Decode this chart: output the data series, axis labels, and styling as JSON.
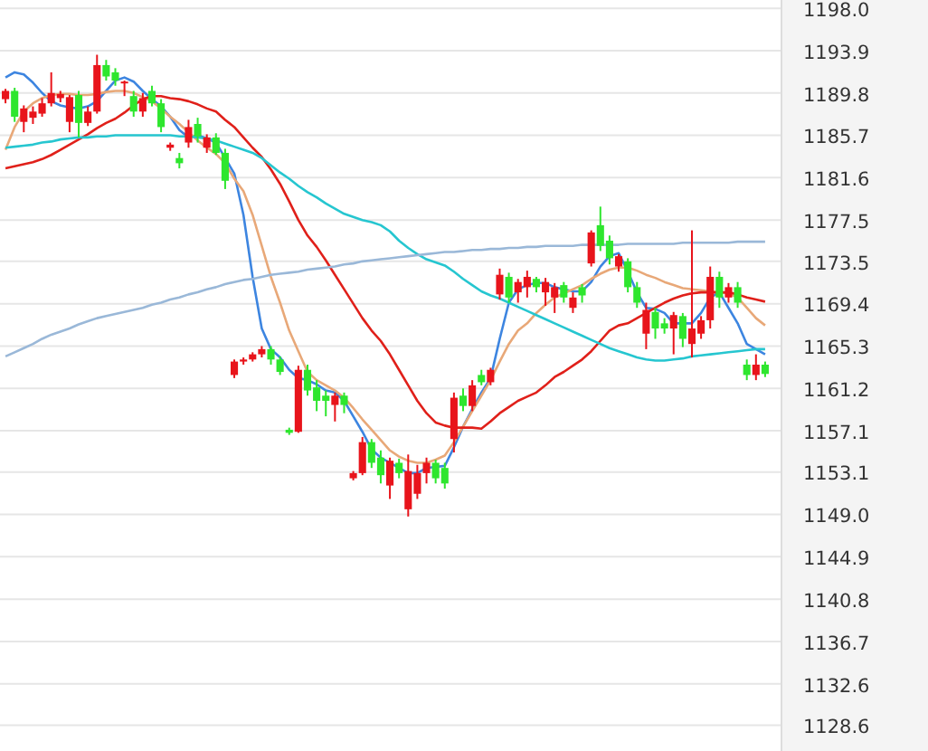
{
  "chart_data": {
    "type": "candlestick",
    "categories": [
      null,
      null,
      null,
      null,
      null,
      null,
      null,
      null,
      null,
      null,
      null,
      null,
      null,
      null,
      null,
      null,
      null,
      null,
      null,
      null,
      null,
      null,
      null,
      null,
      null,
      null,
      null,
      null,
      null,
      null,
      null,
      null,
      null,
      null,
      null,
      null,
      null,
      null,
      null,
      null,
      null,
      null,
      null,
      null,
      null,
      null,
      null,
      null,
      null,
      null,
      null,
      null,
      null,
      null,
      null,
      null,
      null,
      null,
      null,
      null,
      null,
      null,
      null,
      null,
      null,
      null,
      null,
      null,
      null,
      null,
      null,
      null,
      null,
      null,
      null,
      null,
      null,
      null,
      null,
      null,
      null,
      null,
      null,
      null
    ],
    "ohlc": [
      [
        1189.2,
        1190.2,
        1188.8,
        1190.0
      ],
      [
        1190.0,
        1190.3,
        1187.0,
        1187.5
      ],
      [
        1187.0,
        1188.6,
        1186.0,
        1188.3
      ],
      [
        1187.4,
        1188.5,
        1186.8,
        1188.0
      ],
      [
        1187.8,
        1189.3,
        1187.5,
        1188.8
      ],
      [
        1188.8,
        1191.8,
        1188.5,
        1189.8
      ],
      [
        1189.3,
        1190.0,
        1188.9,
        1189.7
      ],
      [
        1187.0,
        1189.6,
        1186.0,
        1189.4
      ],
      [
        1189.6,
        1190.0,
        1185.5,
        1186.9
      ],
      [
        1186.9,
        1188.5,
        1186.6,
        1188.0
      ],
      [
        1188.0,
        1193.5,
        1187.8,
        1192.5
      ],
      [
        1192.5,
        1193.0,
        1191.0,
        1191.4
      ],
      [
        1191.8,
        1192.2,
        1190.5,
        1191.0
      ],
      [
        1190.8,
        1191.0,
        1189.5,
        1190.9
      ],
      [
        1189.5,
        1190.0,
        1187.5,
        1188.0
      ],
      [
        1188.0,
        1189.8,
        1187.5,
        1189.3
      ],
      [
        1190.0,
        1190.5,
        1188.5,
        1188.8
      ],
      [
        1188.8,
        1189.2,
        1186.0,
        1186.5
      ],
      [
        1184.5,
        1185.0,
        1184.2,
        1184.8
      ],
      [
        1183.5,
        1184.0,
        1182.5,
        1183.0
      ],
      [
        1185.0,
        1187.2,
        1184.5,
        1186.5
      ],
      [
        1186.8,
        1187.4,
        1185.0,
        1185.6
      ],
      [
        1184.5,
        1185.8,
        1184.0,
        1185.5
      ],
      [
        1185.5,
        1185.9,
        1183.8,
        1184.0
      ],
      [
        1184.0,
        1184.4,
        1180.5,
        1181.3
      ],
      [
        1162.5,
        1164.0,
        1162.2,
        1163.8
      ],
      [
        1163.8,
        1164.2,
        1163.5,
        1164.0
      ],
      [
        1164.0,
        1164.7,
        1163.8,
        1164.5
      ],
      [
        1164.5,
        1165.3,
        1164.2,
        1165.0
      ],
      [
        1165.0,
        1165.3,
        1163.5,
        1164.0
      ],
      [
        1164.0,
        1164.3,
        1162.5,
        1162.8
      ],
      [
        1157.2,
        1157.4,
        1156.7,
        1156.9
      ],
      [
        1157.0,
        1163.4,
        1156.9,
        1163.0
      ],
      [
        1163.0,
        1163.5,
        1160.5,
        1161.0
      ],
      [
        1161.3,
        1162.0,
        1159.0,
        1160.0
      ],
      [
        1160.5,
        1161.0,
        1158.5,
        1160.0
      ],
      [
        1159.6,
        1160.8,
        1158.0,
        1160.5
      ],
      [
        1160.5,
        1160.8,
        1158.8,
        1159.6
      ],
      [
        1152.5,
        1153.2,
        1152.3,
        1153.0
      ],
      [
        1153.0,
        1156.5,
        1152.8,
        1156.0
      ],
      [
        1156.0,
        1156.3,
        1153.5,
        1154.0
      ],
      [
        1154.5,
        1155.2,
        1152.0,
        1152.8
      ],
      [
        1151.8,
        1154.5,
        1150.5,
        1154.2
      ],
      [
        1154.0,
        1154.4,
        1152.5,
        1153.0
      ],
      [
        1149.5,
        1154.8,
        1148.8,
        1153.2
      ],
      [
        1151.0,
        1153.8,
        1150.5,
        1153.0
      ],
      [
        1153.0,
        1154.5,
        1152.0,
        1154.0
      ],
      [
        1154.0,
        1154.3,
        1152.0,
        1152.5
      ],
      [
        1153.5,
        1154.0,
        1151.5,
        1152.0
      ],
      [
        1156.3,
        1160.8,
        1155.0,
        1160.3
      ],
      [
        1160.5,
        1161.2,
        1159.0,
        1159.5
      ],
      [
        1159.5,
        1162.0,
        1159.0,
        1161.5
      ],
      [
        1162.5,
        1163.0,
        1161.5,
        1161.8
      ],
      [
        1161.8,
        1163.2,
        1161.5,
        1163.0
      ],
      [
        1170.3,
        1172.8,
        1169.8,
        1172.2
      ],
      [
        1172.0,
        1172.4,
        1169.5,
        1170.0
      ],
      [
        1170.5,
        1171.8,
        1169.5,
        1171.5
      ],
      [
        1171.0,
        1172.6,
        1170.0,
        1172.0
      ],
      [
        1171.8,
        1172.0,
        1170.5,
        1171.0
      ],
      [
        1170.5,
        1171.9,
        1169.2,
        1171.5
      ],
      [
        1170.0,
        1171.4,
        1168.5,
        1171.0
      ],
      [
        1171.2,
        1171.5,
        1169.5,
        1170.0
      ],
      [
        1169.0,
        1170.5,
        1168.5,
        1170.0
      ],
      [
        1171.0,
        1171.3,
        1169.5,
        1170.2
      ],
      [
        1173.3,
        1176.5,
        1173.0,
        1176.3
      ],
      [
        1177.0,
        1178.8,
        1174.5,
        1175.0
      ],
      [
        1175.5,
        1176.0,
        1173.2,
        1173.8
      ],
      [
        1173.0,
        1174.2,
        1172.5,
        1174.0
      ],
      [
        1173.5,
        1173.8,
        1170.5,
        1171.0
      ],
      [
        1171.0,
        1171.5,
        1169.0,
        1169.5
      ],
      [
        1166.5,
        1169.5,
        1165.0,
        1168.8
      ],
      [
        1168.6,
        1169.0,
        1166.0,
        1167.0
      ],
      [
        1167.5,
        1168.0,
        1166.5,
        1167.0
      ],
      [
        1167.0,
        1168.6,
        1164.5,
        1168.3
      ],
      [
        1168.2,
        1168.5,
        1165.2,
        1166.0
      ],
      [
        1165.5,
        1176.5,
        1164.2,
        1167.0
      ],
      [
        1166.5,
        1168.2,
        1166.0,
        1167.8
      ],
      [
        1167.8,
        1173.0,
        1167.0,
        1172.0
      ],
      [
        1172.0,
        1172.5,
        1169.0,
        1170.0
      ],
      [
        1170.0,
        1171.4,
        1169.5,
        1171.0
      ],
      [
        1171.0,
        1171.5,
        1169.0,
        1169.5
      ],
      [
        1163.5,
        1164.0,
        1162.0,
        1162.5
      ],
      [
        1162.5,
        1164.5,
        1162.0,
        1163.5
      ],
      [
        1163.5,
        1163.8,
        1162.3,
        1162.6
      ]
    ],
    "colors": [
      "#e8141b",
      "#2ee62e",
      "#e8141b",
      "#e8141b",
      "#e8141b",
      "#e8141b",
      "#e8141b",
      "#e8141b",
      "#2ee62e",
      "#e8141b",
      "#e8141b",
      "#2ee62e",
      "#2ee62e",
      "#e8141b",
      "#2ee62e",
      "#e8141b",
      "#2ee62e",
      "#2ee62e",
      "#e8141b",
      "#2ee62e",
      "#e8141b",
      "#2ee62e",
      "#e8141b",
      "#2ee62e",
      "#2ee62e",
      "#e8141b",
      "#e8141b",
      "#e8141b",
      "#e8141b",
      "#2ee62e",
      "#2ee62e",
      "#2ee62e",
      "#e8141b",
      "#2ee62e",
      "#2ee62e",
      "#2ee62e",
      "#e8141b",
      "#2ee62e",
      "#e8141b",
      "#e8141b",
      "#2ee62e",
      "#2ee62e",
      "#e8141b",
      "#2ee62e",
      "#e8141b",
      "#e8141b",
      "#e8141b",
      "#2ee62e",
      "#2ee62e",
      "#e8141b",
      "#2ee62e",
      "#e8141b",
      "#2ee62e",
      "#e8141b",
      "#e8141b",
      "#2ee62e",
      "#e8141b",
      "#e8141b",
      "#2ee62e",
      "#e8141b",
      "#e8141b",
      "#2ee62e",
      "#e8141b",
      "#2ee62e",
      "#e8141b",
      "#2ee62e",
      "#2ee62e",
      "#e8141b",
      "#2ee62e",
      "#2ee62e",
      "#e8141b",
      "#2ee62e",
      "#2ee62e",
      "#e8141b",
      "#2ee62e",
      "#e8141b",
      "#e8141b",
      "#e8141b",
      "#2ee62e",
      "#e8141b",
      "#2ee62e",
      "#2ee62e",
      "#e8141b",
      "#2ee62e"
    ],
    "series": [
      {
        "type": "line",
        "color": "#3d85e0",
        "values": [
          1191.3,
          1191.8,
          1191.6,
          1190.8,
          1189.8,
          1189.0,
          1188.6,
          1188.4,
          1188.3,
          1188.5,
          1189.0,
          1190.0,
          1191.0,
          1191.3,
          1190.9,
          1190.0,
          1189.2,
          1188.5,
          1187.5,
          1186.2,
          1185.5,
          1185.7,
          1185.4,
          1185.0,
          1183.5,
          1182.0,
          1178.0,
          1172.0,
          1167.0,
          1165.0,
          1164.2,
          1163.0,
          1162.2,
          1162.0,
          1161.6,
          1161.0,
          1160.8,
          1160.0,
          1158.5,
          1157.0,
          1155.3,
          1154.5,
          1154.0,
          1153.5,
          1153.0,
          1153.0,
          1153.5,
          1153.6,
          1153.7,
          1155.5,
          1157.5,
          1159.2,
          1160.8,
          1162.2,
          1166.0,
          1169.5,
          1170.8,
          1171.2,
          1171.4,
          1171.4,
          1171.0,
          1170.8,
          1170.6,
          1170.6,
          1171.5,
          1173.0,
          1174.0,
          1174.3,
          1172.5,
          1170.5,
          1169.0,
          1168.9,
          1168.5,
          1167.5,
          1167.5,
          1167.5,
          1168.5,
          1170.0,
          1170.5,
          1169.0,
          1167.5,
          1165.5,
          1165.0,
          1164.5
        ]
      },
      {
        "type": "line",
        "color": "#e8a878",
        "values": [
          1184.3,
          1186.5,
          1188.0,
          1188.8,
          1189.3,
          1189.6,
          1189.7,
          1189.7,
          1189.6,
          1189.6,
          1189.7,
          1189.9,
          1190.0,
          1190.0,
          1189.8,
          1189.4,
          1189.0,
          1188.3,
          1187.5,
          1186.8,
          1186.0,
          1185.2,
          1184.5,
          1183.9,
          1183.0,
          1181.5,
          1180.3,
          1178.0,
          1175.0,
          1172.0,
          1169.5,
          1166.8,
          1164.8,
          1162.8,
          1162.0,
          1161.5,
          1161.0,
          1160.3,
          1159.3,
          1158.2,
          1157.2,
          1156.2,
          1155.2,
          1154.6,
          1154.2,
          1154.0,
          1154.0,
          1154.3,
          1154.7,
          1156.0,
          1157.5,
          1159.0,
          1160.5,
          1162.0,
          1163.8,
          1165.5,
          1166.8,
          1167.5,
          1168.5,
          1169.3,
          1170.0,
          1170.4,
          1170.8,
          1171.2,
          1171.8,
          1172.3,
          1172.7,
          1172.9,
          1172.9,
          1172.6,
          1172.2,
          1171.9,
          1171.5,
          1171.2,
          1170.9,
          1170.8,
          1170.7,
          1170.6,
          1170.5,
          1170.4,
          1170.0,
          1169.0,
          1168.0,
          1167.3
        ]
      },
      {
        "type": "line",
        "color": "#e0201a",
        "values": [
          1182.5,
          1182.7,
          1182.9,
          1183.1,
          1183.4,
          1183.8,
          1184.3,
          1184.8,
          1185.3,
          1185.8,
          1186.4,
          1186.9,
          1187.3,
          1187.9,
          1188.6,
          1189.2,
          1189.5,
          1189.5,
          1189.3,
          1189.2,
          1189.0,
          1188.7,
          1188.3,
          1188.0,
          1187.2,
          1186.5,
          1185.5,
          1184.5,
          1183.6,
          1182.4,
          1181.0,
          1179.3,
          1177.5,
          1176.0,
          1174.9,
          1173.6,
          1172.2,
          1170.8,
          1169.4,
          1168.0,
          1166.8,
          1165.8,
          1164.5,
          1163.0,
          1161.5,
          1160.0,
          1158.8,
          1157.9,
          1157.6,
          1157.4,
          1157.4,
          1157.4,
          1157.3,
          1158.0,
          1158.8,
          1159.4,
          1160.0,
          1160.4,
          1160.8,
          1161.5,
          1162.3,
          1162.8,
          1163.4,
          1164.0,
          1164.8,
          1165.8,
          1166.8,
          1167.3,
          1167.5,
          1168.0,
          1168.5,
          1169.0,
          1169.5,
          1169.9,
          1170.2,
          1170.4,
          1170.5,
          1170.5,
          1170.5,
          1170.5,
          1170.3,
          1170.0,
          1169.8,
          1169.6
        ]
      },
      {
        "type": "line",
        "color": "#26c6d0",
        "values": [
          1184.5,
          1184.6,
          1184.7,
          1184.8,
          1185.0,
          1185.1,
          1185.3,
          1185.4,
          1185.5,
          1185.5,
          1185.6,
          1185.6,
          1185.7,
          1185.7,
          1185.7,
          1185.7,
          1185.7,
          1185.7,
          1185.7,
          1185.6,
          1185.6,
          1185.5,
          1185.4,
          1185.2,
          1184.9,
          1184.6,
          1184.3,
          1184.0,
          1183.5,
          1182.8,
          1182.1,
          1181.5,
          1180.8,
          1180.2,
          1179.7,
          1179.1,
          1178.6,
          1178.1,
          1177.8,
          1177.5,
          1177.3,
          1177.0,
          1176.4,
          1175.5,
          1174.8,
          1174.2,
          1173.7,
          1173.4,
          1173.1,
          1172.5,
          1171.8,
          1171.2,
          1170.6,
          1170.2,
          1169.9,
          1169.5,
          1169.1,
          1168.7,
          1168.3,
          1167.9,
          1167.5,
          1167.1,
          1166.7,
          1166.3,
          1165.9,
          1165.5,
          1165.1,
          1164.8,
          1164.5,
          1164.2,
          1164.0,
          1163.9,
          1163.9,
          1164.0,
          1164.1,
          1164.3,
          1164.4,
          1164.5,
          1164.6,
          1164.7,
          1164.8,
          1164.9,
          1165.0,
          1165.0
        ]
      },
      {
        "type": "line",
        "color": "#9ab8d8",
        "values": [
          1164.3,
          1164.7,
          1165.1,
          1165.5,
          1166.0,
          1166.4,
          1166.7,
          1167.0,
          1167.4,
          1167.7,
          1168.0,
          1168.2,
          1168.4,
          1168.6,
          1168.8,
          1169.0,
          1169.3,
          1169.5,
          1169.8,
          1170.0,
          1170.3,
          1170.5,
          1170.8,
          1171.0,
          1171.3,
          1171.5,
          1171.7,
          1171.8,
          1172.0,
          1172.2,
          1172.3,
          1172.4,
          1172.5,
          1172.7,
          1172.8,
          1172.9,
          1173.0,
          1173.2,
          1173.3,
          1173.5,
          1173.6,
          1173.7,
          1173.8,
          1173.9,
          1174.0,
          1174.1,
          1174.2,
          1174.3,
          1174.4,
          1174.4,
          1174.5,
          1174.6,
          1174.6,
          1174.7,
          1174.7,
          1174.8,
          1174.8,
          1174.9,
          1174.9,
          1175.0,
          1175.0,
          1175.0,
          1175.0,
          1175.1,
          1175.1,
          1175.1,
          1175.1,
          1175.1,
          1175.2,
          1175.2,
          1175.2,
          1175.2,
          1175.2,
          1175.2,
          1175.3,
          1175.3,
          1175.3,
          1175.3,
          1175.3,
          1175.3,
          1175.4,
          1175.4,
          1175.4,
          1175.4
        ]
      }
    ],
    "ylim": [
      1126.1,
      1198.8
    ],
    "yticks": [
      {
        "value": 1198,
        "label": "1198.0"
      },
      1193.9,
      1189.8,
      1185.7,
      1181.6,
      1177.5,
      1173.5,
      1169.4,
      1165.3,
      1161.2,
      1157.1,
      1153.1,
      {
        "value": 1149,
        "label": "1149.0"
      },
      1144.9,
      1140.8,
      1136.7,
      1132.6,
      1128.6
    ],
    "grid": "y",
    "tick_labels": "y"
  }
}
